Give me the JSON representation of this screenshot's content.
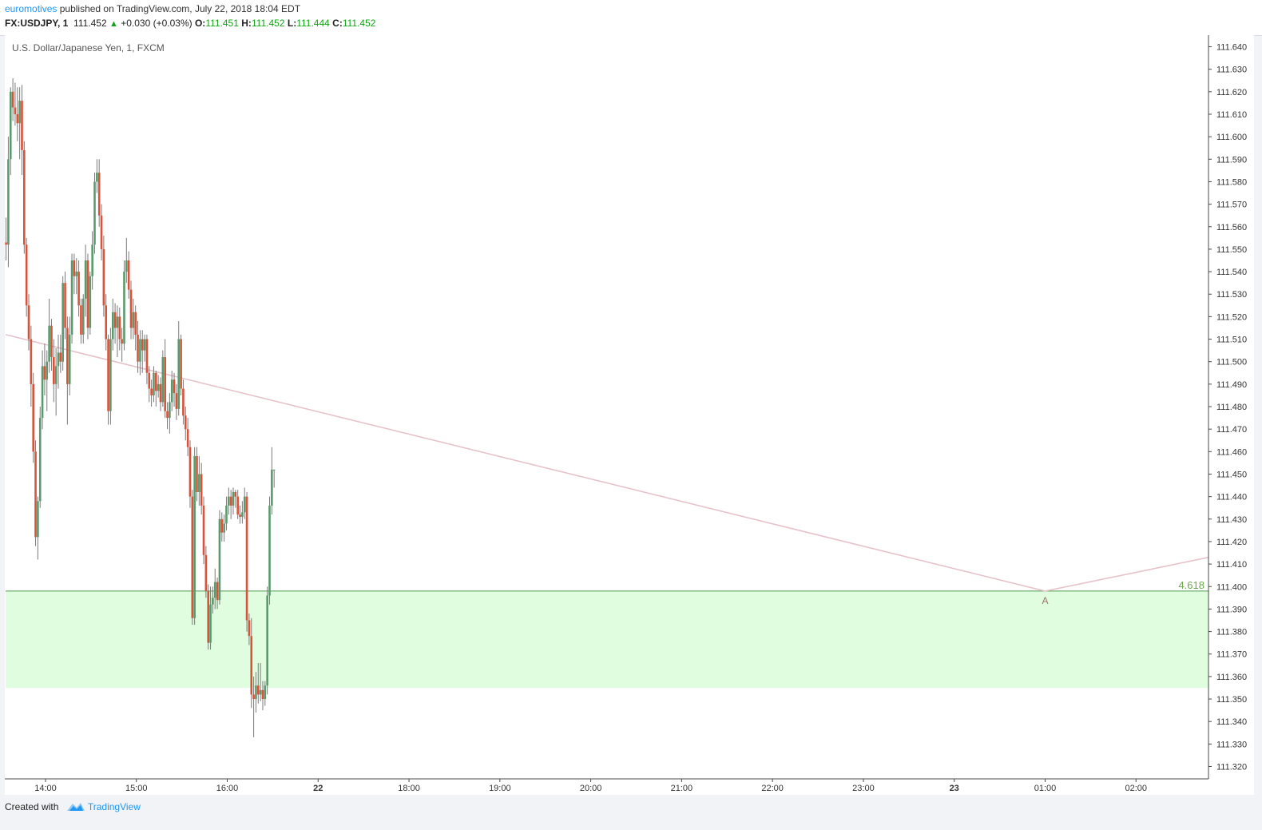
{
  "header": {
    "author": "euromotives",
    "published_text": "published on TradingView.com, July 22, 2018 18:04 EDT",
    "symbol": "FX:USDJPY, 1",
    "last": "111.452",
    "change": "+0.030 (+0.03%)",
    "o_label": "O:",
    "o_value": "111.451",
    "h_label": "H:",
    "h_value": "111.452",
    "l_label": "L:",
    "l_value": "111.444",
    "c_label": "C:",
    "c_value": "111.452"
  },
  "footer": {
    "created_with": "Created with",
    "brand": "TradingView"
  },
  "colors": {
    "up": "#5b9a6e",
    "down": "#d8533a",
    "zone": "#e0fde0",
    "zoneLine": "#4e9a4e",
    "trend": "#e6c3ca",
    "fib": "#6da84f"
  },
  "chart_data": {
    "type": "candlestick",
    "title": "U.S. Dollar/Japanese Yen, 1, FXCM",
    "y_ticks": [
      "111.640",
      "111.630",
      "111.620",
      "111.610",
      "111.600",
      "111.590",
      "111.580",
      "111.570",
      "111.560",
      "111.550",
      "111.540",
      "111.530",
      "111.520",
      "111.510",
      "111.500",
      "111.490",
      "111.480",
      "111.470",
      "111.460",
      "111.450",
      "111.440",
      "111.430",
      "111.420",
      "111.410",
      "111.400",
      "111.390",
      "111.380",
      "111.370",
      "111.360",
      "111.350",
      "111.340",
      "111.330",
      "111.320"
    ],
    "ylim": [
      111.3145,
      111.6448
    ],
    "x_ticks": [
      "14:00",
      "15:00",
      "16:00",
      "22",
      "18:00",
      "19:00",
      "20:00",
      "21:00",
      "22:00",
      "23:00",
      "23",
      "01:00",
      "02:00"
    ],
    "x_tick_hours": [
      -4,
      -3,
      -2,
      -1,
      0,
      1,
      2,
      3,
      4,
      5,
      6,
      7,
      8
    ],
    "x_tick_bold": [
      false,
      false,
      false,
      true,
      false,
      false,
      false,
      false,
      false,
      false,
      true,
      false,
      false
    ],
    "xlim_hours": [
      -4.4392,
      8.7977
    ],
    "target_zone": {
      "top": 111.398,
      "bottom": 111.355
    },
    "trend_line": [
      [
        -4.4392,
        111.512
      ],
      [
        7.0,
        111.398
      ],
      [
        8.7977,
        111.413
      ]
    ],
    "fib_label": "4.618",
    "point_label": "A",
    "point_label_price": 111.398,
    "point_label_hour": 7.0,
    "candles": [
      {
        "t": -4.4342,
        "o": 111.553,
        "h": 111.564,
        "l": 111.545,
        "c": 111.552
      },
      {
        "t": -4.4092,
        "o": 111.552,
        "h": 111.6,
        "l": 111.542,
        "c": 111.59
      },
      {
        "t": -4.3842,
        "o": 111.59,
        "h": 111.622,
        "l": 111.583,
        "c": 111.62
      },
      {
        "t": -4.3592,
        "o": 111.62,
        "h": 111.626,
        "l": 111.607,
        "c": 111.613
      },
      {
        "t": -4.3342,
        "o": 111.613,
        "h": 111.624,
        "l": 111.605,
        "c": 111.61
      },
      {
        "t": -4.3092,
        "o": 111.61,
        "h": 111.622,
        "l": 111.598,
        "c": 111.606
      },
      {
        "t": -4.2842,
        "o": 111.606,
        "h": 111.622,
        "l": 111.59,
        "c": 111.616
      },
      {
        "t": -4.2592,
        "o": 111.616,
        "h": 111.623,
        "l": 111.583,
        "c": 111.594
      },
      {
        "t": -4.2342,
        "o": 111.594,
        "h": 111.598,
        "l": 111.548,
        "c": 111.552
      },
      {
        "t": -4.2092,
        "o": 111.552,
        "h": 111.555,
        "l": 111.52,
        "c": 111.525
      },
      {
        "t": -4.1842,
        "o": 111.525,
        "h": 111.53,
        "l": 111.505,
        "c": 111.51
      },
      {
        "t": -4.1592,
        "o": 111.51,
        "h": 111.516,
        "l": 111.48,
        "c": 111.49
      },
      {
        "t": -4.1342,
        "o": 111.49,
        "h": 111.495,
        "l": 111.455,
        "c": 111.46
      },
      {
        "t": -4.1092,
        "o": 111.46,
        "h": 111.465,
        "l": 111.418,
        "c": 111.422
      },
      {
        "t": -4.0842,
        "o": 111.422,
        "h": 111.44,
        "l": 111.412,
        "c": 111.438
      },
      {
        "t": -4.0592,
        "o": 111.438,
        "h": 111.48,
        "l": 111.435,
        "c": 111.475
      },
      {
        "t": -4.0342,
        "o": 111.475,
        "h": 111.505,
        "l": 111.47,
        "c": 111.498
      },
      {
        "t": -4.0092,
        "o": 111.498,
        "h": 111.508,
        "l": 111.485,
        "c": 111.492
      },
      {
        "t": -3.9842,
        "o": 111.492,
        "h": 111.505,
        "l": 111.478,
        "c": 111.5
      },
      {
        "t": -3.9592,
        "o": 111.5,
        "h": 111.528,
        "l": 111.495,
        "c": 111.516
      },
      {
        "t": -3.9342,
        "o": 111.516,
        "h": 111.519,
        "l": 111.496,
        "c": 111.502
      },
      {
        "t": -3.9092,
        "o": 111.502,
        "h": 111.51,
        "l": 111.482,
        "c": 111.49
      },
      {
        "t": -3.8842,
        "o": 111.49,
        "h": 111.506,
        "l": 111.476,
        "c": 111.498
      },
      {
        "t": -3.8592,
        "o": 111.498,
        "h": 111.512,
        "l": 111.488,
        "c": 111.504
      },
      {
        "t": -3.8342,
        "o": 111.504,
        "h": 111.512,
        "l": 111.495,
        "c": 111.5
      },
      {
        "t": -3.8092,
        "o": 111.5,
        "h": 111.538,
        "l": 111.496,
        "c": 111.535
      },
      {
        "t": -3.7842,
        "o": 111.535,
        "h": 111.54,
        "l": 111.51,
        "c": 111.515
      },
      {
        "t": -3.7592,
        "o": 111.515,
        "h": 111.52,
        "l": 111.472,
        "c": 111.49
      },
      {
        "t": -3.7342,
        "o": 111.49,
        "h": 111.52,
        "l": 111.485,
        "c": 111.512
      },
      {
        "t": -3.7092,
        "o": 111.512,
        "h": 111.548,
        "l": 111.508,
        "c": 111.545
      },
      {
        "t": -3.6842,
        "o": 111.545,
        "h": 111.548,
        "l": 111.53,
        "c": 111.538
      },
      {
        "t": -3.6592,
        "o": 111.538,
        "h": 111.546,
        "l": 111.53,
        "c": 111.54
      },
      {
        "t": -3.6342,
        "o": 111.54,
        "h": 111.545,
        "l": 111.52,
        "c": 111.525
      },
      {
        "t": -3.6092,
        "o": 111.525,
        "h": 111.528,
        "l": 111.508,
        "c": 111.512
      },
      {
        "t": -3.5842,
        "o": 111.512,
        "h": 111.53,
        "l": 111.508,
        "c": 111.528
      },
      {
        "t": -3.5592,
        "o": 111.528,
        "h": 111.552,
        "l": 111.52,
        "c": 111.545
      },
      {
        "t": -3.5342,
        "o": 111.545,
        "h": 111.548,
        "l": 111.51,
        "c": 111.515
      },
      {
        "t": -3.5092,
        "o": 111.515,
        "h": 111.54,
        "l": 111.512,
        "c": 111.538
      },
      {
        "t": -3.4842,
        "o": 111.538,
        "h": 111.558,
        "l": 111.532,
        "c": 111.552
      },
      {
        "t": -3.4592,
        "o": 111.552,
        "h": 111.584,
        "l": 111.548,
        "c": 111.58
      },
      {
        "t": -3.4342,
        "o": 111.58,
        "h": 111.59,
        "l": 111.575,
        "c": 111.584
      },
      {
        "t": -3.4092,
        "o": 111.584,
        "h": 111.59,
        "l": 111.56,
        "c": 111.565
      },
      {
        "t": -3.3842,
        "o": 111.565,
        "h": 111.57,
        "l": 111.545,
        "c": 111.55
      },
      {
        "t": -3.3592,
        "o": 111.55,
        "h": 111.556,
        "l": 111.52,
        "c": 111.525
      },
      {
        "t": -3.3342,
        "o": 111.525,
        "h": 111.53,
        "l": 111.505,
        "c": 111.51
      },
      {
        "t": -3.3092,
        "o": 111.51,
        "h": 111.512,
        "l": 111.472,
        "c": 111.478
      },
      {
        "t": -3.2842,
        "o": 111.478,
        "h": 111.515,
        "l": 111.472,
        "c": 111.51
      },
      {
        "t": -3.2592,
        "o": 111.51,
        "h": 111.528,
        "l": 111.505,
        "c": 111.522
      },
      {
        "t": -3.2342,
        "o": 111.522,
        "h": 111.526,
        "l": 111.508,
        "c": 111.515
      },
      {
        "t": -3.2092,
        "o": 111.515,
        "h": 111.525,
        "l": 111.502,
        "c": 111.52
      },
      {
        "t": -3.1842,
        "o": 111.52,
        "h": 111.524,
        "l": 111.505,
        "c": 111.51
      },
      {
        "t": -3.1592,
        "o": 111.51,
        "h": 111.515,
        "l": 111.5,
        "c": 111.508
      },
      {
        "t": -3.1342,
        "o": 111.508,
        "h": 111.545,
        "l": 111.505,
        "c": 111.54
      },
      {
        "t": -3.1092,
        "o": 111.54,
        "h": 111.555,
        "l": 111.535,
        "c": 111.545
      },
      {
        "t": -3.0842,
        "o": 111.545,
        "h": 111.549,
        "l": 111.528,
        "c": 111.532
      },
      {
        "t": -3.0592,
        "o": 111.532,
        "h": 111.536,
        "l": 111.51,
        "c": 111.515
      },
      {
        "t": -3.0342,
        "o": 111.515,
        "h": 111.528,
        "l": 111.51,
        "c": 111.522
      },
      {
        "t": -3.0092,
        "o": 111.522,
        "h": 111.525,
        "l": 111.505,
        "c": 111.512
      },
      {
        "t": -2.9842,
        "o": 111.512,
        "h": 111.518,
        "l": 111.495,
        "c": 111.5
      },
      {
        "t": -2.9592,
        "o": 111.5,
        "h": 111.514,
        "l": 111.494,
        "c": 111.51
      },
      {
        "t": -2.9342,
        "o": 111.51,
        "h": 111.514,
        "l": 111.495,
        "c": 111.505
      },
      {
        "t": -2.9092,
        "o": 111.505,
        "h": 111.512,
        "l": 111.5,
        "c": 111.51
      },
      {
        "t": -2.8842,
        "o": 111.51,
        "h": 111.512,
        "l": 111.49,
        "c": 111.495
      },
      {
        "t": -2.8592,
        "o": 111.495,
        "h": 111.498,
        "l": 111.482,
        "c": 111.488
      },
      {
        "t": -2.8342,
        "o": 111.488,
        "h": 111.492,
        "l": 111.48,
        "c": 111.485
      },
      {
        "t": -2.8092,
        "o": 111.485,
        "h": 111.498,
        "l": 111.482,
        "c": 111.495
      },
      {
        "t": -2.7842,
        "o": 111.495,
        "h": 111.496,
        "l": 111.48,
        "c": 111.487
      },
      {
        "t": -2.7592,
        "o": 111.487,
        "h": 111.494,
        "l": 111.484,
        "c": 111.49
      },
      {
        "t": -2.7342,
        "o": 111.49,
        "h": 111.493,
        "l": 111.478,
        "c": 111.482
      },
      {
        "t": -2.7092,
        "o": 111.482,
        "h": 111.505,
        "l": 111.48,
        "c": 111.502
      },
      {
        "t": -2.6842,
        "o": 111.502,
        "h": 111.51,
        "l": 111.475,
        "c": 111.478
      },
      {
        "t": -2.6592,
        "o": 111.478,
        "h": 111.482,
        "l": 111.47,
        "c": 111.475
      },
      {
        "t": -2.6342,
        "o": 111.475,
        "h": 111.486,
        "l": 111.468,
        "c": 111.482
      },
      {
        "t": -2.6092,
        "o": 111.482,
        "h": 111.496,
        "l": 111.478,
        "c": 111.492
      },
      {
        "t": -2.5842,
        "o": 111.492,
        "h": 111.495,
        "l": 111.48,
        "c": 111.486
      },
      {
        "t": -2.5592,
        "o": 111.486,
        "h": 111.49,
        "l": 111.474,
        "c": 111.479
      },
      {
        "t": -2.5342,
        "o": 111.479,
        "h": 111.518,
        "l": 111.476,
        "c": 111.51
      },
      {
        "t": -2.5092,
        "o": 111.51,
        "h": 111.512,
        "l": 111.485,
        "c": 111.488
      },
      {
        "t": -2.4842,
        "o": 111.488,
        "h": 111.492,
        "l": 111.472,
        "c": 111.476
      },
      {
        "t": -2.4592,
        "o": 111.476,
        "h": 111.48,
        "l": 111.465,
        "c": 111.47
      },
      {
        "t": -2.4342,
        "o": 111.47,
        "h": 111.475,
        "l": 111.458,
        "c": 111.462
      },
      {
        "t": -2.4092,
        "o": 111.462,
        "h": 111.465,
        "l": 111.435,
        "c": 111.44
      },
      {
        "t": -2.3842,
        "o": 111.44,
        "h": 111.443,
        "l": 111.383,
        "c": 111.386
      },
      {
        "t": -2.3592,
        "o": 111.386,
        "h": 111.462,
        "l": 111.383,
        "c": 111.458
      },
      {
        "t": -2.3342,
        "o": 111.458,
        "h": 111.462,
        "l": 111.438,
        "c": 111.442
      },
      {
        "t": -2.3092,
        "o": 111.442,
        "h": 111.458,
        "l": 111.436,
        "c": 111.45
      },
      {
        "t": -2.2842,
        "o": 111.45,
        "h": 111.455,
        "l": 111.432,
        "c": 111.436
      },
      {
        "t": -2.2592,
        "o": 111.436,
        "h": 111.44,
        "l": 111.41,
        "c": 111.414
      },
      {
        "t": -2.2342,
        "o": 111.414,
        "h": 111.418,
        "l": 111.395,
        "c": 111.398
      },
      {
        "t": -2.2092,
        "o": 111.398,
        "h": 111.401,
        "l": 111.372,
        "c": 111.375
      },
      {
        "t": -2.1842,
        "o": 111.375,
        "h": 111.4,
        "l": 111.372,
        "c": 111.392
      },
      {
        "t": -2.1592,
        "o": 111.392,
        "h": 111.4,
        "l": 111.388,
        "c": 111.395
      },
      {
        "t": -2.1342,
        "o": 111.395,
        "h": 111.408,
        "l": 111.39,
        "c": 111.402
      },
      {
        "t": -2.1092,
        "o": 111.402,
        "h": 111.404,
        "l": 111.39,
        "c": 111.394
      },
      {
        "t": -2.0842,
        "o": 111.394,
        "h": 111.434,
        "l": 111.392,
        "c": 111.43
      },
      {
        "t": -2.0592,
        "o": 111.43,
        "h": 111.433,
        "l": 111.42,
        "c": 111.424
      },
      {
        "t": -2.0342,
        "o": 111.424,
        "h": 111.432,
        "l": 111.42,
        "c": 111.428
      },
      {
        "t": -2.0092,
        "o": 111.428,
        "h": 111.44,
        "l": 111.425,
        "c": 111.436
      },
      {
        "t": -1.9842,
        "o": 111.436,
        "h": 111.444,
        "l": 111.432,
        "c": 111.44
      },
      {
        "t": -1.9592,
        "o": 111.44,
        "h": 111.443,
        "l": 111.43,
        "c": 111.436
      },
      {
        "t": -1.9342,
        "o": 111.436,
        "h": 111.444,
        "l": 111.432,
        "c": 111.442
      },
      {
        "t": -1.9092,
        "o": 111.442,
        "h": 111.443,
        "l": 111.435,
        "c": 111.44
      },
      {
        "t": -1.8842,
        "o": 111.44,
        "h": 111.443,
        "l": 111.43,
        "c": 111.432
      },
      {
        "t": -1.8592,
        "o": 111.432,
        "h": 111.436,
        "l": 111.428,
        "c": 111.431
      },
      {
        "t": -1.8342,
        "o": 111.431,
        "h": 111.438,
        "l": 111.428,
        "c": 111.433
      },
      {
        "t": -1.8092,
        "o": 111.433,
        "h": 111.444,
        "l": 111.43,
        "c": 111.44
      },
      {
        "t": -1.7842,
        "o": 111.44,
        "h": 111.442,
        "l": 111.38,
        "c": 111.385
      },
      {
        "t": -1.7592,
        "o": 111.385,
        "h": 111.388,
        "l": 111.374,
        "c": 111.378
      },
      {
        "t": -1.7342,
        "o": 111.378,
        "h": 111.386,
        "l": 111.346,
        "c": 111.352
      },
      {
        "t": -1.7092,
        "o": 111.352,
        "h": 111.36,
        "l": 111.333,
        "c": 111.35
      },
      {
        "t": -1.6842,
        "o": 111.35,
        "h": 111.362,
        "l": 111.344,
        "c": 111.356
      },
      {
        "t": -1.6592,
        "o": 111.356,
        "h": 111.366,
        "l": 111.348,
        "c": 111.352
      },
      {
        "t": -1.6342,
        "o": 111.352,
        "h": 111.366,
        "l": 111.349,
        "c": 111.354
      },
      {
        "t": -1.6092,
        "o": 111.354,
        "h": 111.358,
        "l": 111.345,
        "c": 111.35
      },
      {
        "t": -1.5842,
        "o": 111.35,
        "h": 111.358,
        "l": 111.347,
        "c": 111.356
      },
      {
        "t": -1.5592,
        "o": 111.356,
        "h": 111.4,
        "l": 111.352,
        "c": 111.396
      },
      {
        "t": -1.5342,
        "o": 111.396,
        "h": 111.44,
        "l": 111.392,
        "c": 111.436
      },
      {
        "t": -1.5092,
        "o": 111.436,
        "h": 111.462,
        "l": 111.432,
        "c": 111.452
      },
      {
        "t": -1.4842,
        "o": 111.452,
        "h": 111.452,
        "l": 111.444,
        "c": 111.452
      }
    ]
  }
}
